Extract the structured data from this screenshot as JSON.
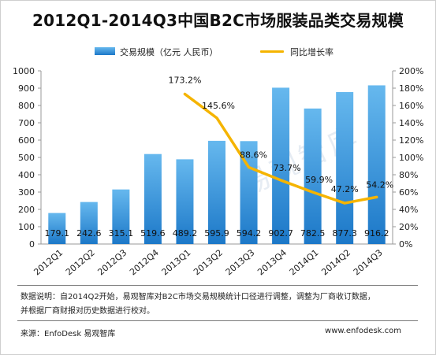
{
  "chart_data": {
    "type": "bar",
    "title": "2012Q1-2014Q3中国B2C市场服装品类交易规模",
    "categories": [
      "2012Q1",
      "2012Q2",
      "2012Q3",
      "2012Q4",
      "2013Q1",
      "2013Q2",
      "2013Q3",
      "2013Q4",
      "2014Q1",
      "2014Q2",
      "2014Q3"
    ],
    "series": [
      {
        "name": "交易规模（亿元 人民币）",
        "type": "bar",
        "axis": "left",
        "values": [
          179.1,
          242.6,
          315.1,
          519.6,
          489.2,
          595.9,
          594.2,
          902.7,
          782.5,
          877.3,
          916.2
        ],
        "labels": [
          "179.1",
          "242.6",
          "315.1",
          "519.6",
          "489.2",
          "595.9",
          "594.2",
          "902.7",
          "782.5",
          "877.3",
          "916.2"
        ],
        "color": "#1f7cc9"
      },
      {
        "name": "同比增长率",
        "type": "line",
        "axis": "right",
        "values": [
          null,
          null,
          null,
          null,
          173.2,
          145.6,
          88.6,
          73.7,
          59.9,
          47.2,
          54.2
        ],
        "labels": [
          "",
          "",
          "",
          "",
          "173.2%",
          "145.6%",
          "88.6%",
          "73.7%",
          "59.9%",
          "47.2%",
          "54.2%"
        ],
        "color": "#f5b400"
      }
    ],
    "left_axis": {
      "ylim": [
        0,
        1000
      ],
      "ticks": [
        "0",
        "100",
        "200",
        "300",
        "400",
        "500",
        "600",
        "700",
        "800",
        "900",
        "1000"
      ]
    },
    "right_axis": {
      "ylim": [
        0,
        200
      ],
      "ticks": [
        "0%",
        "20%",
        "40%",
        "60%",
        "80%",
        "100%",
        "120%",
        "140%",
        "160%",
        "180%",
        "200%"
      ]
    },
    "grid": false,
    "legend_position": "top"
  },
  "legend": {
    "bar_label": "交易规模（亿元 人民币）",
    "line_label": "同比增长率"
  },
  "watermark": "易观智库",
  "notes": {
    "line1": "数据说明：自2014Q2开始，易观智库对B2C市场交易规模统计口径进行调整，调整为厂商收订数据，",
    "line2": "并根据厂商财报对历史数据进行校对。"
  },
  "footer": {
    "source": "来源：EnfoDesk 易观智库",
    "site": "www.enfodesk.com"
  },
  "colors": {
    "bar_top": "#66b8ee",
    "bar_bottom": "#1c78c8",
    "line": "#f5b400"
  }
}
